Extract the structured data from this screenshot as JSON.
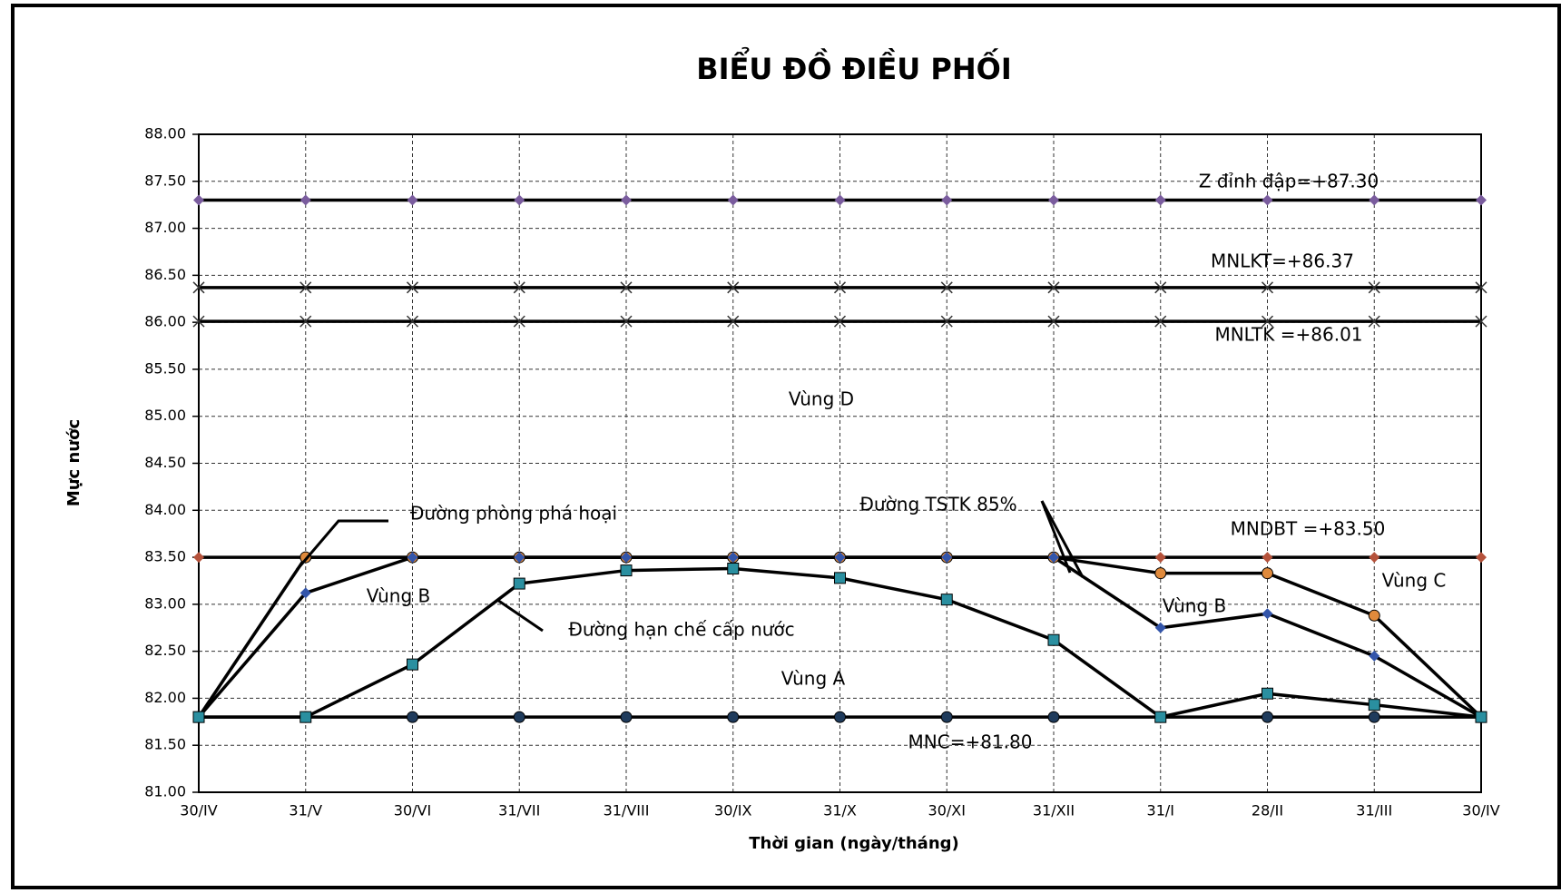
{
  "chart_data": {
    "type": "line",
    "title": "BIỂU ĐỒ ĐIỀU PHỐI",
    "y_label": "Mực nước",
    "x_label": "Thời gian  (ngày/tháng)",
    "categories": [
      "30/IV",
      "31/V",
      "30/VI",
      "31/VII",
      "31/VIII",
      "30/IX",
      "31/X",
      "30/XI",
      "31/XII",
      "31/I",
      "28/II",
      "31/III",
      "30/IV"
    ],
    "ylim": [
      81,
      88
    ],
    "yticks": [
      {
        "value": 81,
        "label": "81.00"
      },
      {
        "value": 81.5,
        "label": "81.50"
      },
      {
        "value": 82,
        "label": "82.00"
      },
      {
        "value": 82.5,
        "label": "82.50"
      },
      {
        "value": 83,
        "label": "83.00"
      },
      {
        "value": 83.5,
        "label": "83.50"
      },
      {
        "value": 84,
        "label": "84.00"
      },
      {
        "value": 84.5,
        "label": "84.50"
      },
      {
        "value": 85,
        "label": "85.00"
      },
      {
        "value": 85.5,
        "label": "85.50"
      },
      {
        "value": 86,
        "label": "86.00"
      },
      {
        "value": 86.5,
        "label": "86.50"
      },
      {
        "value": 87,
        "label": "87.00"
      },
      {
        "value": 87.5,
        "label": "87.50"
      },
      {
        "value": 88,
        "label": "88.00"
      }
    ],
    "grid": true,
    "series": [
      {
        "color": "#7a5c9e",
        "marker": "diamond",
        "values": [
          87.3,
          87.3,
          87.3,
          87.3,
          87.3,
          87.3,
          87.3,
          87.3,
          87.3,
          87.3,
          87.3,
          87.3,
          87.3
        ]
      },
      {
        "color": "#333333",
        "marker": "x",
        "values": [
          86.37,
          86.37,
          86.37,
          86.37,
          86.37,
          86.37,
          86.37,
          86.37,
          86.37,
          86.37,
          86.37,
          86.37,
          86.37
        ]
      },
      {
        "color": "#333333",
        "marker": "x",
        "values": [
          86.01,
          86.01,
          86.01,
          86.01,
          86.01,
          86.01,
          86.01,
          86.01,
          86.01,
          86.01,
          86.01,
          86.01,
          86.01
        ]
      },
      {
        "color": "#b5523b",
        "marker": "diamond",
        "values": [
          83.5,
          83.5,
          83.5,
          83.5,
          83.5,
          83.5,
          83.5,
          83.5,
          83.5,
          83.5,
          83.5,
          83.5,
          83.5
        ]
      },
      {
        "color": "#1f3b5c",
        "marker": "circle",
        "values": [
          81.8,
          81.8,
          81.8,
          81.8,
          81.8,
          81.8,
          81.8,
          81.8,
          81.8,
          81.8,
          81.8,
          81.8,
          81.8
        ]
      },
      {
        "color": "#e08a3c",
        "marker": "circle",
        "values": [
          81.8,
          83.5,
          83.5,
          83.5,
          83.5,
          83.5,
          83.5,
          83.5,
          83.5,
          83.33,
          83.33,
          82.88,
          81.8
        ]
      },
      {
        "color": "#3355aa",
        "marker": "diamond",
        "values": [
          81.8,
          83.12,
          83.5,
          83.5,
          83.5,
          83.5,
          83.5,
          83.5,
          83.5,
          82.75,
          82.9,
          82.45,
          81.8
        ]
      },
      {
        "color": "#2a8fa0",
        "marker": "square",
        "values": [
          81.8,
          81.8,
          82.36,
          83.22,
          83.36,
          83.38,
          83.28,
          83.05,
          82.62,
          81.8,
          82.05,
          81.93,
          81.8
        ]
      }
    ],
    "annotations": [
      "Z đỉnh đập=+87.30",
      "MNLKT=+86.37",
      "MNLTK =+86.01",
      "MNDBT =+83.50",
      "MNC=+81.80",
      "Vùng D",
      "Vùng B",
      "Vùng B",
      "Vùng A",
      "Vùng C",
      "Đường phòng phá hoại",
      "Đường TSTK 85%",
      "Đường hạn chế cấp nước"
    ]
  }
}
